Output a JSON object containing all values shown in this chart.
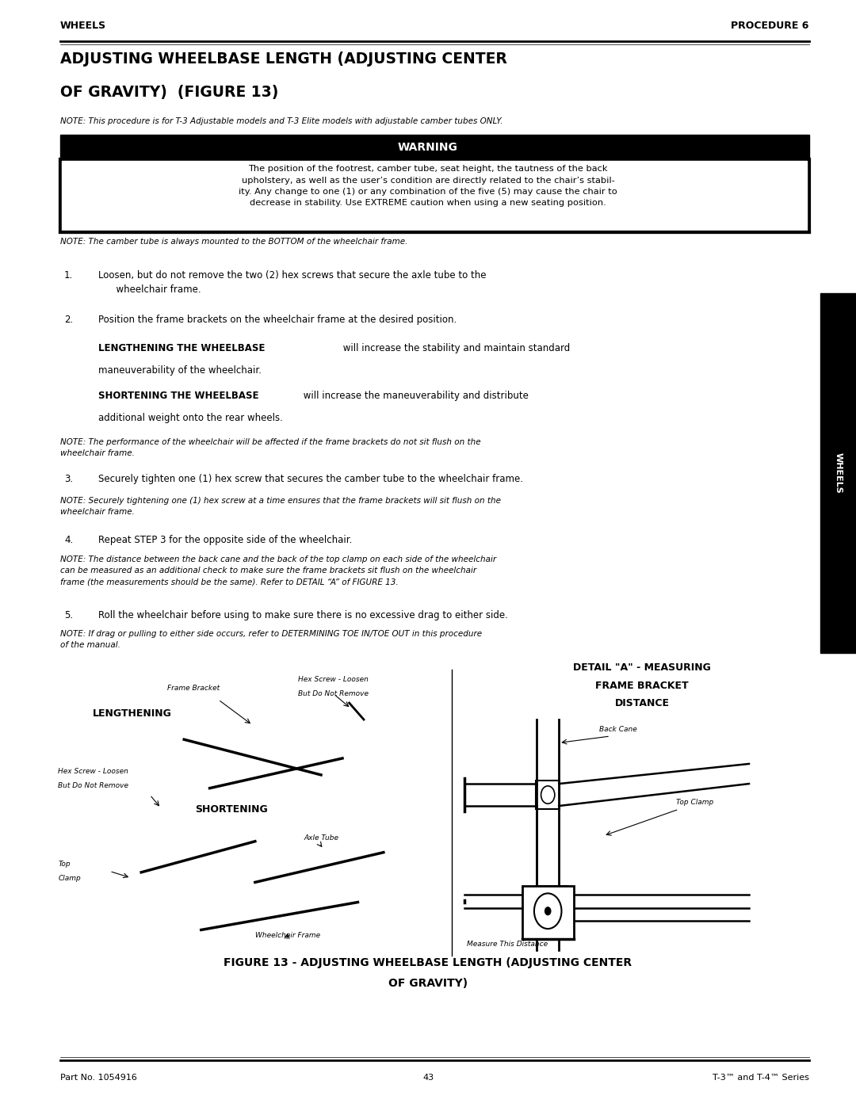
{
  "page_width": 10.8,
  "page_height": 13.97,
  "bg_color": "#ffffff",
  "header_left": "WHEELS",
  "header_right": "PROCEDURE 6",
  "title_line1": "ADJUSTING WHEELBASE LENGTH (ADJUSTING CENTER",
  "title_line2": "OF GRAVITY)  (FIGURE 13)",
  "note_italic1": "NOTE: This procedure is for T-3 Adjustable models and T-3 Elite models with adjustable camber tubes ONLY.",
  "warning_text": "WARNING",
  "warning_body": "The position of the footrest, camber tube, seat height, the tautness of the back\nupholstery, as well as the user’s condition are directly related to the chair’s stabil-\nity. Any change to one (1) or any combination of the five (5) may cause the chair to\ndecrease in stability. Use EXTREME caution when using a new seating position.",
  "note_camber": "NOTE: The camber tube is always mounted to the BOTTOM of the wheelchair frame.",
  "note_perf": "NOTE: The performance of the wheelchair will be affected if the frame brackets do not sit flush on the\nwheelchair frame.",
  "note_tighten": "NOTE: Securely tightening one (1) hex screw at a time ensures that the frame brackets will sit flush on the\nwheelchair frame.",
  "note_distance": "NOTE: The distance between the back cane and the back of the top clamp on each side of the wheelchair\ncan be measured as an additional check to make sure the frame brackets sit flush on the wheelchair\nframe (the measurements should be the same). Refer to DETAIL “A” of FIGURE 13.",
  "note_drag": "NOTE: If drag or pulling to either side occurs, refer to DETERMINING TOE IN/TOE OUT in this procedure\nof the manual.",
  "lengthening_head": "LENGTHENING THE WHEELBASE",
  "shortening_head": "SHORTENING THE WHEELBASE",
  "figure_caption_line1": "FIGURE 13 - ADJUSTING WHEELBASE LENGTH (ADJUSTING CENTER",
  "figure_caption_line2": "OF GRAVITY)",
  "footer_left": "Part No. 1054916",
  "footer_center": "43",
  "footer_right": "T-3™ and T-4™ Series",
  "tab_label": "WHEELS"
}
